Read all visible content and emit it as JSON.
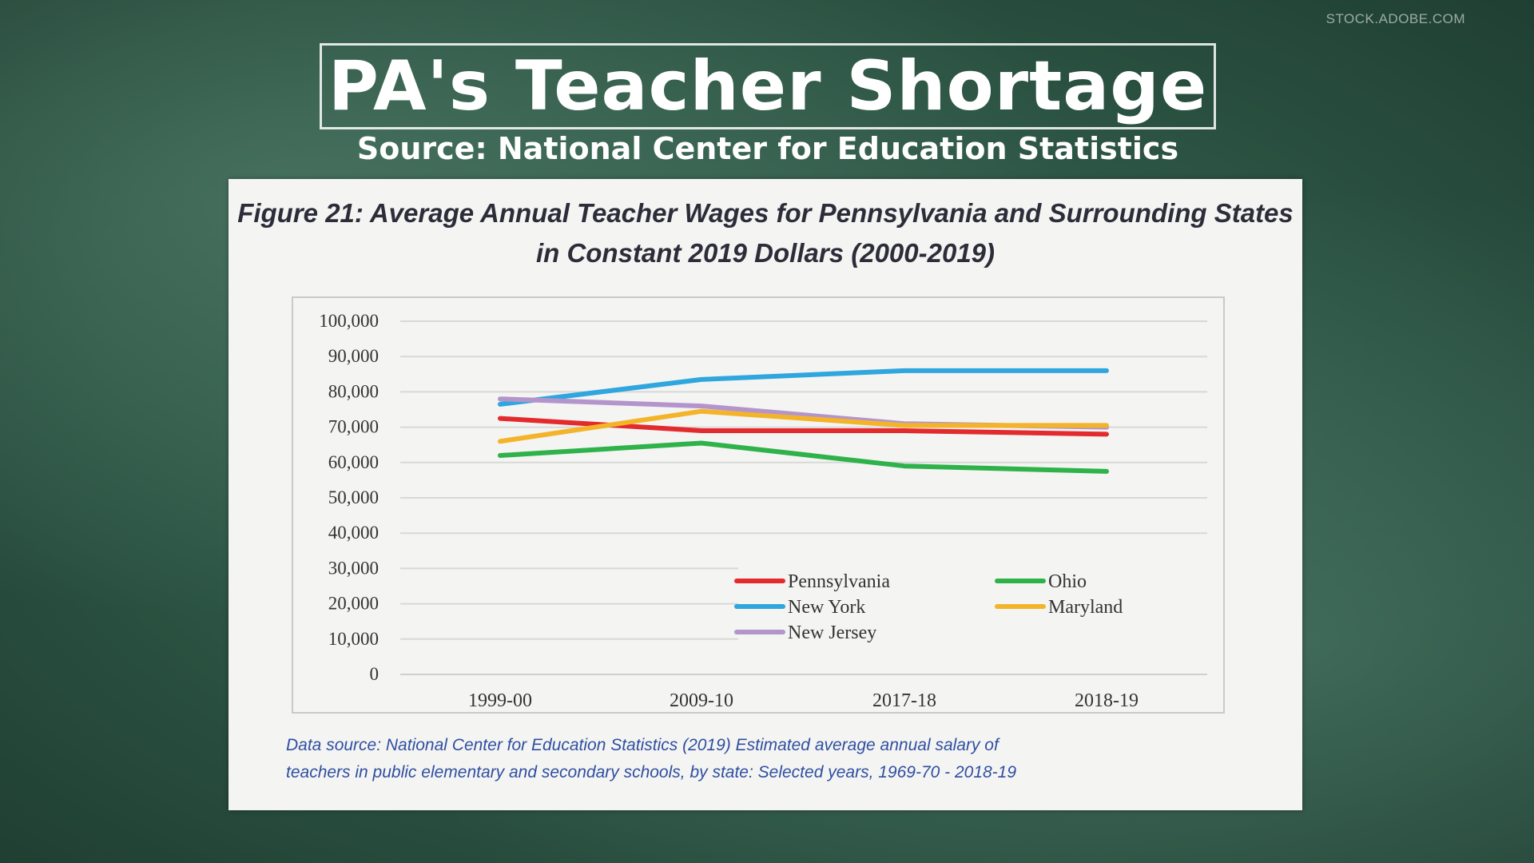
{
  "watermark": "STOCK.ADOBE.COM",
  "headline": "PA's Teacher Shortage",
  "source_line": "Source: National Center for Education Statistics",
  "figure": {
    "title_line1": "Figure 21: Average Annual Teacher Wages for Pennsylvania and Surrounding States",
    "title_line2": "in Constant 2019 Dollars (2000-2019)",
    "footnote_line1": "Data source: National Center for Education Statistics (2019) Estimated average annual salary of",
    "footnote_line2": "teachers in public elementary and secondary schools, by state: Selected years, 1969-70 - 2018-19"
  },
  "colors": {
    "background": "#2b5242",
    "panel": "#f4f4f3",
    "pennsylvania": "#e32b2e",
    "new_york": "#2fa6de",
    "new_jersey": "#b395cc",
    "ohio": "#2fb24a",
    "maryland": "#f4b42a"
  },
  "chart_data": {
    "type": "line",
    "title": "",
    "xlabel": "",
    "ylabel": "",
    "categories": [
      "1999-00",
      "2009-10",
      "2017-18",
      "2018-19"
    ],
    "y_ticks": [
      "0",
      "10,000",
      "20,000",
      "30,000",
      "40,000",
      "50,000",
      "60,000",
      "70,000",
      "80,000",
      "90,000",
      "100,000"
    ],
    "ylim": [
      0,
      100000
    ],
    "grid": true,
    "legend_placement": "bottom-right",
    "series": [
      {
        "name": "Pennsylvania",
        "values": [
          72500,
          69000,
          69000,
          68000
        ],
        "color": "#e32b2e"
      },
      {
        "name": "New York",
        "values": [
          76500,
          83500,
          86000,
          86000
        ],
        "color": "#2fa6de"
      },
      {
        "name": "New Jersey",
        "values": [
          78000,
          76000,
          71000,
          70000
        ],
        "color": "#b395cc"
      },
      {
        "name": "Ohio",
        "values": [
          62000,
          65500,
          59000,
          57500
        ],
        "color": "#2fb24a"
      },
      {
        "name": "Maryland",
        "values": [
          66000,
          74500,
          70500,
          70500
        ],
        "color": "#f4b42a"
      }
    ],
    "legend_order": [
      "Pennsylvania",
      "Ohio",
      "New York",
      "Maryland",
      "New Jersey"
    ]
  }
}
